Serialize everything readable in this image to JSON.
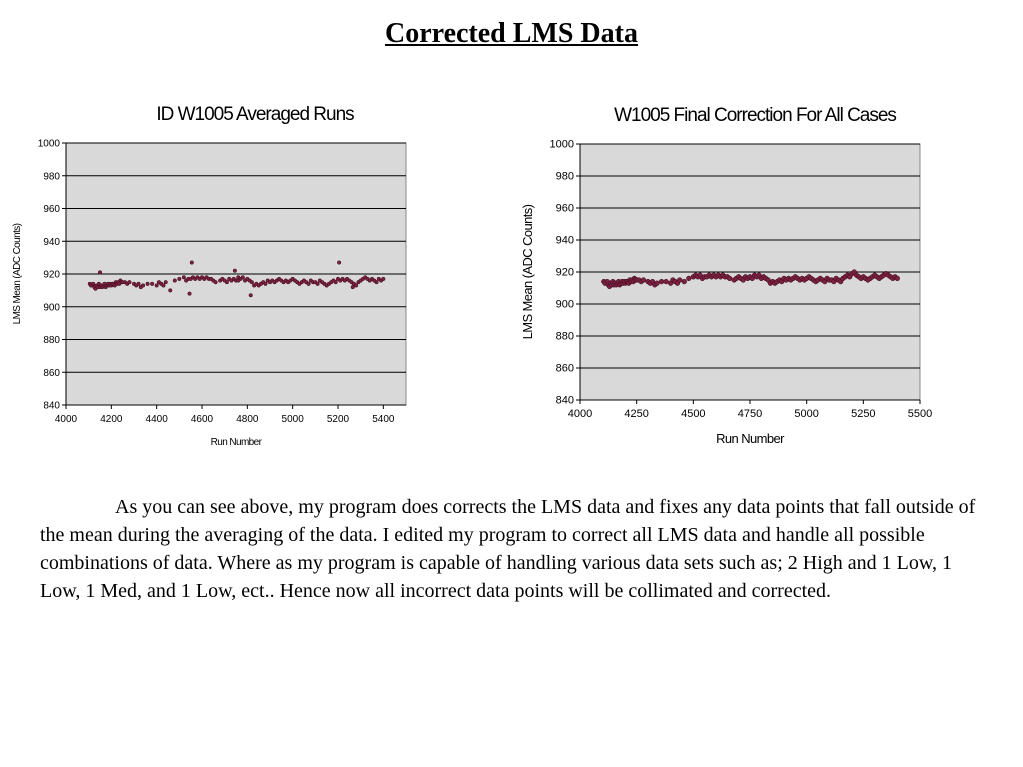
{
  "page": {
    "title": "Corrected LMS Data",
    "body": "As you can see above, my program does corrects the LMS data  and fixes any data points that fall outside of the mean during the averaging of the data.  I  edited my program to correct all LMS data and handle all possible combinations of data.  Where as my program is capable of handling various data sets such as; 2 High and 1 Low, 1 Low, 1 Med, and 1 Low, ect..  Hence now all incorrect data points will be collimated and corrected."
  },
  "chart_data": [
    {
      "type": "scatter",
      "title": "ID W1005 Averaged Runs",
      "xlabel": "Run Number",
      "ylabel": "LMS Mean (ADC Counts)",
      "xlim": [
        4000,
        5500
      ],
      "ylim": [
        840,
        1000
      ],
      "xticks": [
        4000,
        4200,
        4400,
        4600,
        4800,
        5000,
        5200,
        5400
      ],
      "yticks": [
        840,
        860,
        880,
        900,
        920,
        940,
        960,
        980,
        1000
      ],
      "grid": "horizontal",
      "plot_background": "#d9d9d9",
      "marker_color": "#7a2040",
      "series": [
        {
          "x": [
            4105,
            4110,
            4120,
            4125,
            4130,
            4135,
            4140,
            4145,
            4150,
            4155,
            4160,
            4165,
            4170,
            4175,
            4180,
            4185,
            4190,
            4195,
            4200,
            4205,
            4210,
            4215,
            4220,
            4225,
            4230,
            4235,
            4240,
            4245,
            4250,
            4260,
            4270,
            4280,
            4300,
            4310,
            4320,
            4330,
            4340,
            4360,
            4380,
            4400,
            4410,
            4420,
            4430,
            4440,
            4460,
            4480,
            4500,
            4520,
            4530,
            4540,
            4550,
            4560,
            4570,
            4580,
            4590,
            4600,
            4610,
            4620,
            4630,
            4640,
            4650,
            4660,
            4680,
            4690,
            4700,
            4710,
            4720,
            4730,
            4740,
            4750,
            4760,
            4770,
            4780,
            4790,
            4800,
            4810,
            4820,
            4830,
            4840,
            4850,
            4860,
            4870,
            4880,
            4890,
            4900,
            4910,
            4920,
            4930,
            4940,
            4950,
            4960,
            4970,
            4980,
            4990,
            5000,
            5010,
            5020,
            5030,
            5040,
            5050,
            5060,
            5070,
            5080,
            5090,
            5100,
            5110,
            5120,
            5130,
            5140,
            5150,
            5160,
            5170,
            5180,
            5190,
            5200,
            5210,
            5220,
            5230,
            5240,
            5250,
            5260,
            5270,
            5280,
            5290,
            5300,
            5310,
            5320,
            5330,
            5340,
            5350,
            5360,
            5370,
            5380,
            5390,
            5400,
            4150,
            4555,
            4745,
            5205,
            4545,
            4815,
            4760,
            5265
          ],
          "y": [
            914,
            913,
            914,
            912,
            911,
            913,
            912,
            914,
            912,
            913,
            912,
            913,
            914,
            912,
            913,
            914,
            913,
            914,
            913,
            914,
            914,
            913,
            915,
            914,
            915,
            914,
            916,
            915,
            915,
            915,
            914,
            915,
            914,
            913,
            914,
            912,
            913,
            914,
            914,
            913,
            915,
            914,
            913,
            915,
            910,
            916,
            917,
            918,
            916,
            917,
            917,
            918,
            917,
            918,
            917,
            918,
            917,
            918,
            917,
            917,
            916,
            915,
            916,
            917,
            916,
            915,
            917,
            916,
            917,
            916,
            918,
            917,
            918,
            916,
            917,
            916,
            915,
            913,
            914,
            913,
            914,
            915,
            914,
            916,
            915,
            916,
            915,
            916,
            917,
            916,
            915,
            916,
            915,
            916,
            917,
            916,
            915,
            914,
            915,
            916,
            915,
            914,
            916,
            915,
            915,
            914,
            916,
            915,
            914,
            913,
            914,
            915,
            916,
            915,
            917,
            916,
            917,
            916,
            917,
            916,
            915,
            914,
            913,
            915,
            916,
            917,
            918,
            917,
            916,
            917,
            916,
            915,
            917,
            916,
            917,
            921,
            927,
            922,
            927,
            908,
            907,
            916,
            912
          ]
        }
      ]
    },
    {
      "type": "scatter",
      "title": "W1005 Final Correction For All Cases",
      "xlabel": "Run Number",
      "ylabel": "LMS Mean (ADC Counts)",
      "xlim": [
        4000,
        5500
      ],
      "ylim": [
        840,
        1000
      ],
      "xticks": [
        4000,
        4250,
        4500,
        4750,
        5000,
        5250,
        5500
      ],
      "yticks": [
        840,
        860,
        880,
        900,
        920,
        940,
        960,
        980,
        1000
      ],
      "grid": "horizontal",
      "plot_background": "#d9d9d9",
      "marker_color": "#7a2040",
      "series": [
        {
          "x": [
            4105,
            4110,
            4120,
            4125,
            4130,
            4135,
            4140,
            4145,
            4150,
            4155,
            4160,
            4165,
            4170,
            4175,
            4180,
            4185,
            4190,
            4195,
            4200,
            4205,
            4210,
            4215,
            4220,
            4225,
            4230,
            4235,
            4240,
            4245,
            4250,
            4260,
            4270,
            4280,
            4300,
            4310,
            4320,
            4330,
            4340,
            4360,
            4380,
            4400,
            4410,
            4420,
            4430,
            4440,
            4460,
            4480,
            4500,
            4510,
            4520,
            4530,
            4540,
            4550,
            4560,
            4570,
            4580,
            4590,
            4600,
            4610,
            4620,
            4630,
            4640,
            4650,
            4660,
            4680,
            4690,
            4700,
            4710,
            4720,
            4730,
            4740,
            4750,
            4760,
            4770,
            4780,
            4790,
            4800,
            4810,
            4820,
            4830,
            4840,
            4850,
            4860,
            4870,
            4880,
            4890,
            4900,
            4910,
            4920,
            4930,
            4940,
            4950,
            4960,
            4970,
            4980,
            4990,
            5000,
            5010,
            5020,
            5030,
            5040,
            5050,
            5060,
            5070,
            5080,
            5090,
            5100,
            5110,
            5120,
            5130,
            5140,
            5150,
            5160,
            5170,
            5180,
            5190,
            5200,
            5210,
            5220,
            5230,
            5240,
            5250,
            5260,
            5270,
            5280,
            5290,
            5300,
            5310,
            5320,
            5330,
            5340,
            5350,
            5360,
            5370,
            5380,
            5390,
            5400
          ],
          "y": [
            914,
            913,
            914,
            912,
            911,
            913,
            912,
            914,
            912,
            913,
            912,
            913,
            914,
            912,
            913,
            914,
            913,
            914,
            913,
            914,
            914,
            913,
            915,
            914,
            915,
            914,
            916,
            915,
            915,
            915,
            914,
            915,
            914,
            913,
            914,
            912,
            913,
            914,
            914,
            913,
            915,
            914,
            913,
            915,
            914,
            916,
            917,
            918,
            917,
            918,
            916,
            917,
            917,
            918,
            917,
            918,
            917,
            918,
            917,
            918,
            917,
            917,
            916,
            915,
            916,
            917,
            916,
            915,
            917,
            916,
            917,
            916,
            918,
            917,
            918,
            916,
            917,
            916,
            915,
            913,
            914,
            913,
            914,
            915,
            914,
            916,
            915,
            916,
            915,
            916,
            917,
            916,
            915,
            916,
            915,
            916,
            917,
            916,
            915,
            914,
            915,
            916,
            915,
            914,
            916,
            915,
            915,
            914,
            916,
            915,
            914,
            916,
            917,
            918,
            917,
            919,
            920,
            918,
            917,
            916,
            917,
            916,
            915,
            916,
            917,
            918,
            917,
            916,
            917,
            918,
            919,
            918,
            917,
            916,
            917,
            916
          ]
        }
      ]
    }
  ]
}
